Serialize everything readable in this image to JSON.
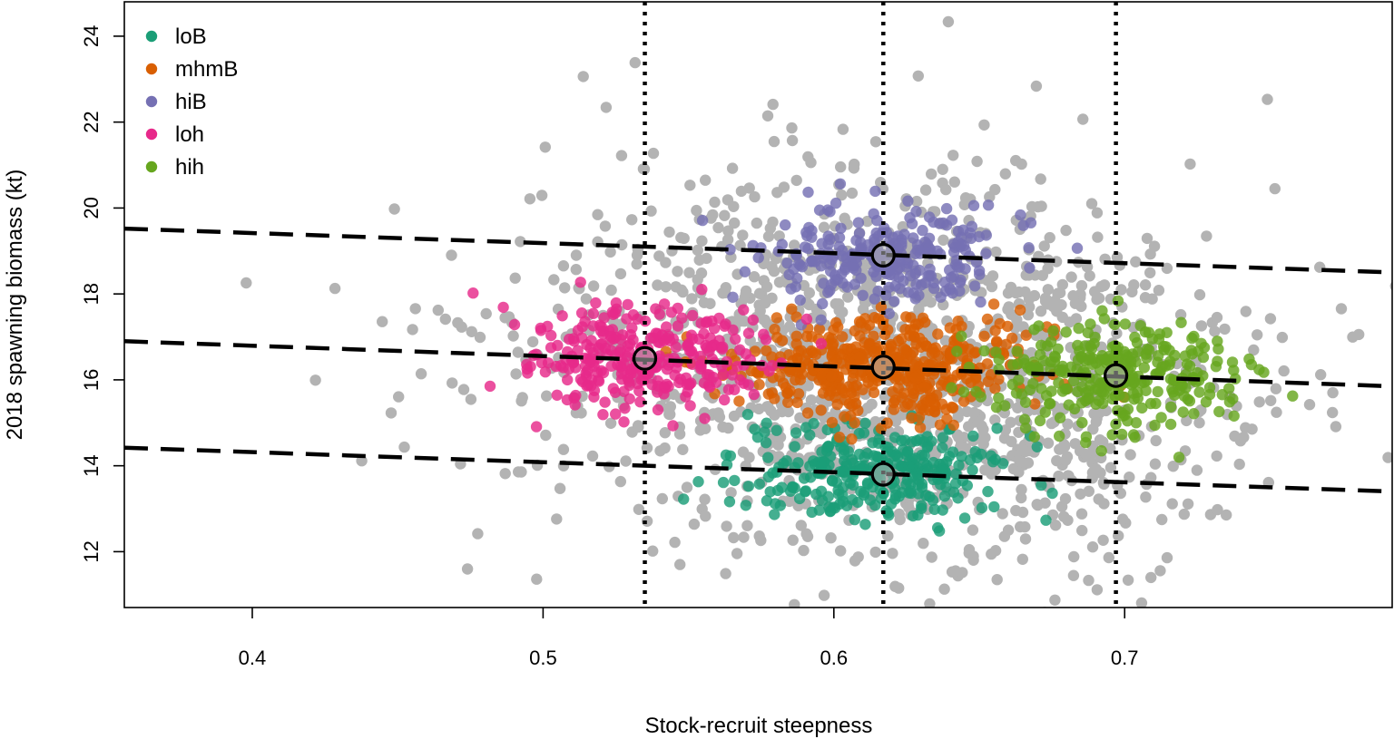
{
  "chart_data": {
    "type": "scatter",
    "title": "",
    "xlabel": "Stock-recruit steepness",
    "ylabel": "2018 spawning biomass (kt)",
    "xlim": [
      0.356,
      0.792
    ],
    "ylim": [
      10.7,
      24.8
    ],
    "xticks": [
      "0.4",
      "0.5",
      "0.6",
      "0.7"
    ],
    "yticks": [
      "12",
      "14",
      "16",
      "18",
      "20",
      "22",
      "24"
    ],
    "grid": false,
    "legend_position": "top-left",
    "background_cloud": {
      "color": "#b3b3b3",
      "x_mean": 0.617,
      "x_sd": 0.062,
      "y_mean": 16.3,
      "y_sd": 2.3,
      "correlation": -0.15,
      "n": 1400
    },
    "series": [
      {
        "name": "loB",
        "color": "#1b9e77",
        "center": [
          0.617,
          13.8
        ],
        "x_sd": 0.022,
        "y_sd": 0.55,
        "n": 300
      },
      {
        "name": "mhmB",
        "color": "#d95f02",
        "center": [
          0.617,
          16.3
        ],
        "x_sd": 0.024,
        "y_sd": 0.55,
        "n": 450
      },
      {
        "name": "hiB",
        "color": "#7570b3",
        "center": [
          0.617,
          18.9
        ],
        "x_sd": 0.022,
        "y_sd": 0.55,
        "n": 260
      },
      {
        "name": "loh",
        "color": "#e7298a",
        "center": [
          0.535,
          16.5
        ],
        "x_sd": 0.02,
        "y_sd": 0.6,
        "n": 300
      },
      {
        "name": "hih",
        "color": "#66a61e",
        "center": [
          0.697,
          16.1
        ],
        "x_sd": 0.02,
        "y_sd": 0.6,
        "n": 300
      }
    ],
    "vertical_lines": [
      0.535,
      0.617,
      0.697
    ],
    "dashed_lines": [
      {
        "x": [
          0.356,
          0.792
        ],
        "y": [
          19.52,
          18.5
        ]
      },
      {
        "x": [
          0.356,
          0.792
        ],
        "y": [
          16.9,
          15.85
        ]
      },
      {
        "x": [
          0.356,
          0.792
        ],
        "y": [
          14.42,
          13.4
        ]
      }
    ],
    "highlight_points": [
      {
        "x": 0.535,
        "y": 16.5
      },
      {
        "x": 0.617,
        "y": 18.9
      },
      {
        "x": 0.617,
        "y": 16.3
      },
      {
        "x": 0.617,
        "y": 13.8
      },
      {
        "x": 0.697,
        "y": 16.1
      }
    ]
  }
}
